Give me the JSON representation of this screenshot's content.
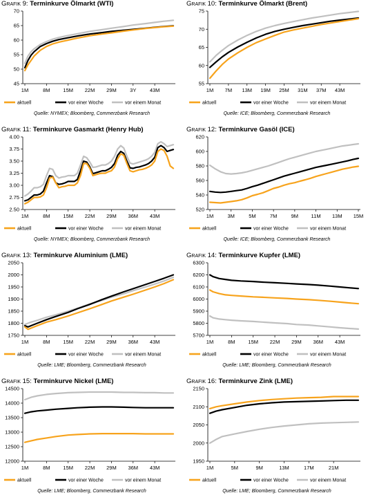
{
  "legend": {
    "aktuell": "aktuell",
    "woche": "vor einer Woche",
    "monat": "vor einem Monat"
  },
  "colors": {
    "aktuell": "#f7a31c",
    "woche": "#000000",
    "monat": "#c0c0c0"
  },
  "chart_data": [
    {
      "type": "line",
      "prefix": "Grafik 9:",
      "title": "Terminkurve Ölmarkt (WTI)",
      "source": "Quelle: NYMEX; Bloomberg, Commerzbank Research",
      "ylim": [
        45,
        70
      ],
      "yticks": [
        45,
        50,
        55,
        60,
        65,
        70
      ],
      "xticks": [
        "1M",
        "8M",
        "15M",
        "22M",
        "29M",
        "3Y",
        "43M"
      ],
      "xtick_pos": [
        1,
        8,
        15,
        22,
        29,
        36,
        43
      ],
      "xrange": [
        1,
        49
      ],
      "x": [
        1,
        2,
        3,
        4,
        6,
        8,
        10,
        12,
        15,
        18,
        22,
        26,
        29,
        33,
        36,
        40,
        43,
        46,
        49
      ],
      "series": [
        {
          "key": "aktuell",
          "values": [
            49.5,
            51.5,
            53,
            54.5,
            56.5,
            57.8,
            58.7,
            59.3,
            60,
            60.7,
            61.5,
            62.1,
            62.5,
            63.1,
            63.5,
            64,
            64.3,
            64.6,
            64.8
          ]
        },
        {
          "key": "woche",
          "values": [
            50.5,
            53,
            54.8,
            56,
            57.8,
            58.8,
            59.6,
            60.2,
            60.8,
            61.4,
            62.1,
            62.6,
            63,
            63.4,
            63.7,
            64.1,
            64.4,
            64.7,
            64.9
          ]
        },
        {
          "key": "monat",
          "values": [
            52,
            54.5,
            56,
            57,
            58.5,
            59.5,
            60.3,
            60.9,
            61.6,
            62.2,
            63,
            63.6,
            64.1,
            64.7,
            65.2,
            65.7,
            66.1,
            66.5,
            66.8
          ]
        }
      ]
    },
    {
      "type": "line",
      "prefix": "Grafik 10:",
      "title": "Terminkurve Ölmarkt (Brent)",
      "source": "Quelle: ICE; Bloomberg, Commerzbank Research",
      "ylim": [
        55,
        75
      ],
      "yticks": [
        55,
        60,
        65,
        70,
        75
      ],
      "xticks": [
        "1M",
        "7M",
        "13M",
        "19M",
        "25M",
        "31M",
        "37M",
        "43M"
      ],
      "xtick_pos": [
        1,
        7,
        13,
        19,
        25,
        31,
        37,
        43
      ],
      "xrange": [
        1,
        49
      ],
      "x": [
        1,
        3,
        5,
        7,
        10,
        13,
        16,
        19,
        22,
        25,
        28,
        31,
        34,
        37,
        40,
        43,
        46,
        49
      ],
      "series": [
        {
          "key": "aktuell",
          "values": [
            56.5,
            58.5,
            60.3,
            61.8,
            63.5,
            65,
            66.3,
            67.3,
            68.3,
            69.2,
            69.8,
            70.3,
            70.8,
            71.3,
            71.7,
            72.1,
            72.5,
            72.9
          ]
        },
        {
          "key": "woche",
          "values": [
            59.5,
            61,
            62.4,
            63.6,
            65.1,
            66.4,
            67.6,
            68.6,
            69.4,
            70,
            70.5,
            71,
            71.4,
            71.8,
            72.2,
            72.5,
            72.8,
            73.1
          ]
        },
        {
          "key": "monat",
          "values": [
            61,
            62.8,
            64.2,
            65.5,
            67,
            68.3,
            69.4,
            70.3,
            71,
            71.6,
            72.1,
            72.6,
            73.1,
            73.5,
            73.9,
            74.3,
            74.6,
            74.9
          ]
        }
      ]
    },
    {
      "type": "line",
      "prefix": "Grafik 11:",
      "title": "Terminkurve Gasmarkt (Henry Hub)",
      "source": "Quelle: NYMEX; Bloomberg, Commerzbank Research",
      "ylim": [
        2.5,
        4.0
      ],
      "yticks": [
        2.5,
        2.75,
        3.0,
        3.25,
        3.5,
        3.75,
        4.0
      ],
      "ydec": 2,
      "xticks": [
        "1M",
        "8M",
        "15M",
        "22M",
        "29M",
        "36M",
        "43M"
      ],
      "xtick_pos": [
        1,
        8,
        15,
        22,
        29,
        36,
        43
      ],
      "xrange": [
        1,
        49
      ],
      "x": [
        1,
        2,
        3,
        4,
        5,
        6,
        7,
        8,
        9,
        10,
        11,
        12,
        13,
        14,
        15,
        16,
        17,
        18,
        19,
        20,
        21,
        22,
        23,
        24,
        25,
        26,
        27,
        28,
        29,
        30,
        31,
        32,
        33,
        34,
        35,
        36,
        37,
        38,
        39,
        40,
        41,
        42,
        43,
        44,
        45,
        46,
        47,
        48,
        49
      ],
      "series": [
        {
          "key": "aktuell",
          "values": [
            2.62,
            2.65,
            2.7,
            2.75,
            2.75,
            2.76,
            2.8,
            2.95,
            3.15,
            3.17,
            3.05,
            2.95,
            2.97,
            2.98,
            3.0,
            3.0,
            3.0,
            3.05,
            3.2,
            3.45,
            3.45,
            3.35,
            3.2,
            3.22,
            3.24,
            3.25,
            3.25,
            3.28,
            3.3,
            3.38,
            3.55,
            3.65,
            3.62,
            3.45,
            3.3,
            3.28,
            3.3,
            3.32,
            3.33,
            3.35,
            3.38,
            3.42,
            3.5,
            3.7,
            3.75,
            3.72,
            3.6,
            3.4,
            3.35
          ]
        },
        {
          "key": "woche",
          "values": [
            2.68,
            2.7,
            2.75,
            2.8,
            2.8,
            2.82,
            2.88,
            3.05,
            3.2,
            3.18,
            3.05,
            3.02,
            3.03,
            3.05,
            3.08,
            3.08,
            3.08,
            3.12,
            3.3,
            3.5,
            3.48,
            3.38,
            3.24,
            3.26,
            3.28,
            3.3,
            3.3,
            3.33,
            3.37,
            3.45,
            3.62,
            3.7,
            3.66,
            3.5,
            3.36,
            3.35,
            3.37,
            3.38,
            3.4,
            3.42,
            3.45,
            3.5,
            3.58,
            3.78,
            3.82,
            3.78,
            3.7,
            3.72,
            3.74
          ]
        },
        {
          "key": "monat",
          "values": [
            2.78,
            2.82,
            2.88,
            2.95,
            2.95,
            2.97,
            3.02,
            3.2,
            3.35,
            3.33,
            3.2,
            3.15,
            3.17,
            3.18,
            3.2,
            3.2,
            3.2,
            3.25,
            3.42,
            3.6,
            3.57,
            3.48,
            3.37,
            3.38,
            3.4,
            3.42,
            3.42,
            3.45,
            3.5,
            3.6,
            3.75,
            3.82,
            3.77,
            3.6,
            3.46,
            3.44,
            3.46,
            3.48,
            3.5,
            3.52,
            3.55,
            3.6,
            3.68,
            3.86,
            3.9,
            3.86,
            3.8,
            3.82,
            3.84
          ]
        }
      ]
    },
    {
      "type": "line",
      "prefix": "Grafik 12:",
      "title": "Terminkurve Gasöl (ICE)",
      "source": "Quelle: ICE; Bloomberg, Commerzbank Research",
      "ylim": [
        520,
        620
      ],
      "yticks": [
        520,
        540,
        560,
        580,
        600,
        620
      ],
      "xticks": [
        "1M",
        "3M",
        "5M",
        "7M",
        "9M",
        "11M",
        "13M",
        "15M"
      ],
      "xtick_pos": [
        1,
        3,
        5,
        7,
        9,
        11,
        13,
        15
      ],
      "xrange": [
        1,
        15
      ],
      "x": [
        1,
        1.5,
        2,
        2.5,
        3,
        3.5,
        4,
        4.5,
        5,
        5.5,
        6,
        6.5,
        7,
        7.5,
        8,
        8.5,
        9,
        9.5,
        10,
        10.5,
        11,
        11.5,
        12,
        12.5,
        13,
        13.5,
        14,
        14.5,
        15
      ],
      "series": [
        {
          "key": "aktuell",
          "values": [
            530,
            529.5,
            529,
            530,
            531,
            532,
            533.5,
            536,
            539,
            541,
            543,
            546,
            549,
            551,
            553.5,
            555.5,
            557,
            559,
            561,
            563,
            565.5,
            567.5,
            569.5,
            571.5,
            573.5,
            575.5,
            577,
            578.5,
            579.5
          ]
        },
        {
          "key": "woche",
          "values": [
            545,
            544,
            543.5,
            544,
            545,
            546,
            547,
            549,
            551.5,
            553.5,
            556,
            558.5,
            561,
            563.5,
            566,
            568,
            570,
            572,
            574,
            576,
            578,
            579.5,
            581,
            582.5,
            584,
            585.5,
            587,
            589,
            590.5
          ]
        },
        {
          "key": "monat",
          "values": [
            581,
            576,
            572,
            569.5,
            569,
            569.5,
            570.5,
            572,
            574,
            576,
            578,
            580,
            582.5,
            585,
            587.5,
            590,
            592,
            594,
            596,
            598,
            600,
            601.5,
            603,
            604.5,
            606,
            607.5,
            608.5,
            609.5,
            610.5
          ]
        }
      ]
    },
    {
      "type": "line",
      "prefix": "Grafik 13:",
      "title": "Terminkurve Aluminium (LME)",
      "source": "Quelle: LME; Bloomberg, Commerzbank Research",
      "ylim": [
        1750,
        2050
      ],
      "yticks": [
        1750,
        1800,
        1850,
        1900,
        1950,
        2000,
        2050
      ],
      "xticks": [
        "1M",
        "8M",
        "15M",
        "22M",
        "29M",
        "36M",
        "43M"
      ],
      "xtick_pos": [
        1,
        8,
        15,
        22,
        29,
        36,
        43
      ],
      "xrange": [
        1,
        49
      ],
      "x": [
        1,
        2,
        3,
        5,
        8,
        11,
        15,
        18,
        22,
        26,
        29,
        33,
        36,
        40,
        43,
        46,
        49
      ],
      "series": [
        {
          "key": "aktuell",
          "values": [
            1785,
            1775,
            1780,
            1790,
            1805,
            1815,
            1830,
            1843,
            1860,
            1878,
            1892,
            1908,
            1920,
            1937,
            1950,
            1964,
            1980
          ]
        },
        {
          "key": "woche",
          "values": [
            1790,
            1785,
            1790,
            1800,
            1815,
            1828,
            1845,
            1860,
            1878,
            1898,
            1912,
            1930,
            1943,
            1960,
            1973,
            1986,
            2000
          ]
        },
        {
          "key": "monat",
          "values": [
            1795,
            1800,
            1805,
            1812,
            1825,
            1835,
            1850,
            1862,
            1880,
            1895,
            1908,
            1922,
            1935,
            1950,
            1962,
            1975,
            1990
          ]
        }
      ]
    },
    {
      "type": "line",
      "prefix": "Grafik 14:",
      "title": "Terminkurve Kupfer (LME)",
      "source": "Quelle: LME; Bloomberg, Commerzbank Research",
      "ylim": [
        5700,
        6300
      ],
      "yticks": [
        5700,
        5800,
        5900,
        6000,
        6100,
        6200,
        6300
      ],
      "xticks": [
        "1M",
        "8M",
        "15M",
        "22M",
        "29M",
        "36M",
        "43M"
      ],
      "xtick_pos": [
        1,
        8,
        15,
        22,
        29,
        36,
        43
      ],
      "xrange": [
        1,
        49
      ],
      "x": [
        1,
        2,
        4,
        6,
        8,
        11,
        15,
        18,
        22,
        26,
        29,
        33,
        36,
        40,
        43,
        46,
        49
      ],
      "series": [
        {
          "key": "aktuell",
          "values": [
            6075,
            6060,
            6045,
            6035,
            6030,
            6025,
            6018,
            6015,
            6010,
            6005,
            6000,
            5995,
            5990,
            5982,
            5975,
            5968,
            5962
          ]
        },
        {
          "key": "woche",
          "values": [
            6200,
            6185,
            6170,
            6162,
            6155,
            6150,
            6145,
            6140,
            6135,
            6130,
            6125,
            6120,
            6115,
            6107,
            6100,
            6093,
            6087
          ]
        },
        {
          "key": "monat",
          "values": [
            5860,
            5845,
            5835,
            5830,
            5825,
            5820,
            5815,
            5810,
            5803,
            5797,
            5790,
            5785,
            5778,
            5770,
            5763,
            5757,
            5752
          ]
        }
      ]
    },
    {
      "type": "line",
      "prefix": "Grafik 15:",
      "title": "Terminkurve Nickel (LME)",
      "source": "Quelle: LME; Bloomberg, Commerzbank Research",
      "ylim": [
        12000,
        14500
      ],
      "yticks": [
        12000,
        12500,
        13000,
        13500,
        14000,
        14500
      ],
      "xticks": [
        "1M",
        "8M",
        "15M",
        "22M",
        "29M",
        "36M",
        "43M"
      ],
      "xtick_pos": [
        1,
        8,
        15,
        22,
        29,
        36,
        43
      ],
      "xrange": [
        1,
        49
      ],
      "x": [
        1,
        3,
        5,
        8,
        11,
        15,
        18,
        22,
        26,
        29,
        33,
        36,
        40,
        43,
        46,
        49
      ],
      "series": [
        {
          "key": "aktuell",
          "values": [
            12650,
            12700,
            12750,
            12800,
            12850,
            12900,
            12920,
            12940,
            12950,
            12950,
            12950,
            12950,
            12940,
            12940,
            12940,
            12940
          ]
        },
        {
          "key": "woche",
          "values": [
            13650,
            13700,
            13730,
            13760,
            13790,
            13820,
            13840,
            13860,
            13870,
            13870,
            13860,
            13850,
            13840,
            13840,
            13840,
            13840
          ]
        },
        {
          "key": "monat",
          "values": [
            14120,
            14200,
            14250,
            14300,
            14330,
            14360,
            14370,
            14380,
            14380,
            14380,
            14370,
            14370,
            14360,
            14360,
            14350,
            14350
          ]
        }
      ]
    },
    {
      "type": "line",
      "prefix": "Grafik 16:",
      "title": "Terminkurve Zink (LME)",
      "source": "Quelle: LME; Bloomberg, Commerzbank Research",
      "ylim": [
        1950,
        2150
      ],
      "yticks": [
        1950,
        2000,
        2050,
        2100,
        2150
      ],
      "xticks": [
        "1M",
        "5M",
        "9M",
        "13M",
        "17M",
        "21M"
      ],
      "xtick_pos": [
        1,
        5,
        9,
        13,
        17,
        21
      ],
      "xrange": [
        1,
        25
      ],
      "x": [
        1,
        2,
        3,
        5,
        7,
        9,
        11,
        13,
        15,
        17,
        19,
        21,
        23,
        25
      ],
      "series": [
        {
          "key": "aktuell",
          "values": [
            2095,
            2100,
            2103,
            2108,
            2113,
            2117,
            2120,
            2122,
            2124,
            2125,
            2126,
            2128,
            2128,
            2128
          ]
        },
        {
          "key": "woche",
          "values": [
            2082,
            2088,
            2092,
            2098,
            2104,
            2108,
            2111,
            2113,
            2114,
            2115,
            2116,
            2117,
            2118,
            2118
          ]
        },
        {
          "key": "monat",
          "values": [
            2000,
            2010,
            2018,
            2025,
            2032,
            2038,
            2043,
            2047,
            2050,
            2053,
            2055,
            2056,
            2057,
            2058
          ]
        }
      ]
    }
  ]
}
